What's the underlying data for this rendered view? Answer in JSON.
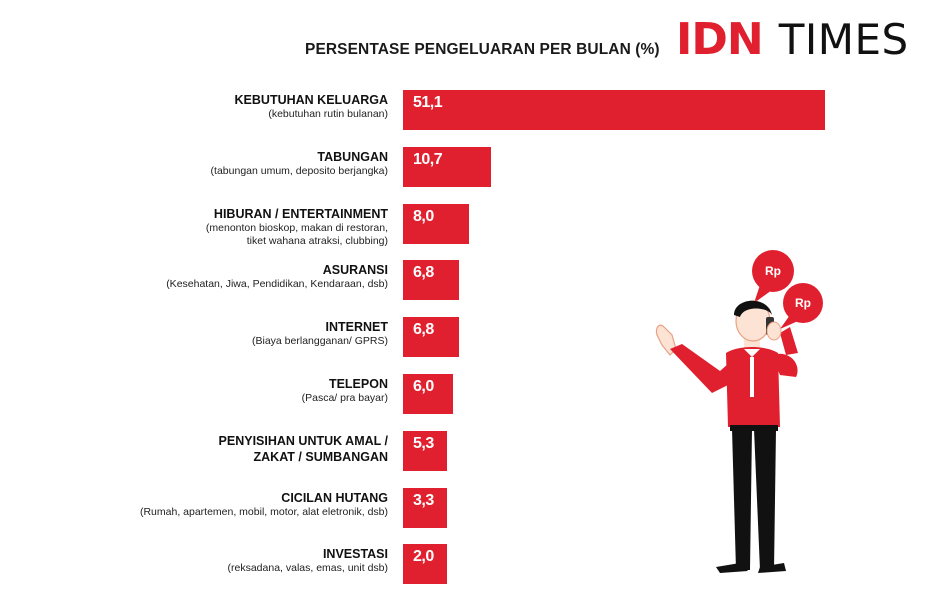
{
  "header": {
    "title": "PERSENTASE PENGELUARAN PER BULAN (%)",
    "logo_part1": "IDN",
    "logo_part2": "TIMES"
  },
  "colors": {
    "bar": "#e0202e",
    "text": "#1a1a1a",
    "background": "#ffffff"
  },
  "chart_data": {
    "type": "bar",
    "orientation": "horizontal",
    "title": "PERSENTASE PENGELUARAN PER BULAN (%)",
    "categories": [
      "KEBUTUHAN KELUARGA",
      "TABUNGAN",
      "HIBURAN / ENTERTAINMENT",
      "ASURANSI",
      "INTERNET",
      "TELEPON",
      "PENYISIHAN UNTUK AMAL / ZAKAT / SUMBANGAN",
      "CICILAN HUTANG",
      "INVESTASI"
    ],
    "values": [
      51.1,
      10.7,
      8.0,
      6.8,
      6.8,
      6.0,
      5.3,
      3.3,
      2.0
    ],
    "bars": [
      {
        "label": [
          "KEBUTUHAN KELUARGA"
        ],
        "sub": [
          "(kebutuhan rutin bulanan)"
        ],
        "value": 51.1,
        "display": "51,1"
      },
      {
        "label": [
          "TABUNGAN"
        ],
        "sub": [
          "(tabungan umum, deposito berjangka)"
        ],
        "value": 10.7,
        "display": "10,7"
      },
      {
        "label": [
          "HIBURAN / ENTERTAINMENT"
        ],
        "sub": [
          "(menonton bioskop, makan di restoran,",
          "tiket wahana atraksi, clubbing)"
        ],
        "value": 8.0,
        "display": "8,0"
      },
      {
        "label": [
          "ASURANSI"
        ],
        "sub": [
          "(Kesehatan, Jiwa, Pendidikan, Kendaraan, dsb)"
        ],
        "value": 6.8,
        "display": "6,8"
      },
      {
        "label": [
          "INTERNET"
        ],
        "sub": [
          "(Biaya berlangganan/ GPRS)"
        ],
        "value": 6.8,
        "display": "6,8"
      },
      {
        "label": [
          "TELEPON"
        ],
        "sub": [
          "(Pasca/ pra bayar)"
        ],
        "value": 6.0,
        "display": "6,0"
      },
      {
        "label": [
          "PENYISIHAN UNTUK AMAL /",
          "ZAKAT / SUMBANGAN"
        ],
        "sub": [],
        "value": 5.3,
        "display": "5,3"
      },
      {
        "label": [
          "CICILAN HUTANG"
        ],
        "sub": [
          "(Rumah, apartemen, mobil, motor, alat eletronik, dsb)"
        ],
        "value": 3.3,
        "display": "3,3"
      },
      {
        "label": [
          "INVESTASI"
        ],
        "sub": [
          "(reksadana, valas, emas, unit dsb)"
        ],
        "value": 2.0,
        "display": "2,0"
      }
    ],
    "xlim": [
      0,
      51.1
    ],
    "grid": false,
    "legend": "none"
  },
  "illustration": {
    "icon": "man-on-phone-icon",
    "bubbles": [
      "Rp",
      "Rp"
    ]
  }
}
